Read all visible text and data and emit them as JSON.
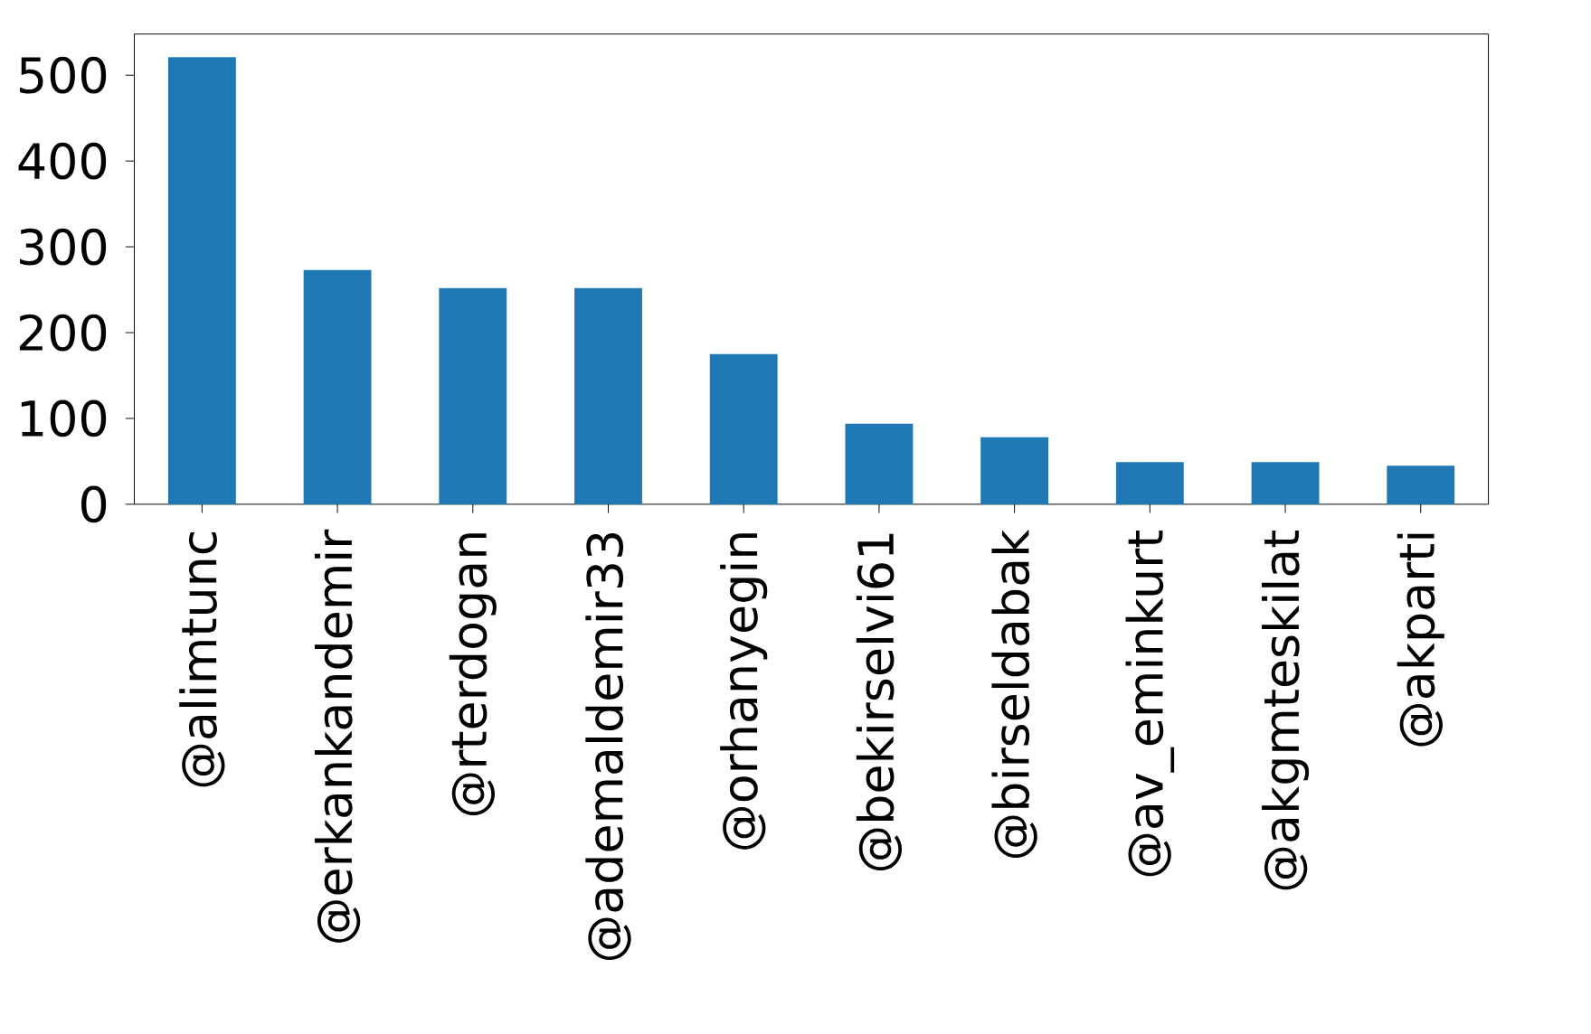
{
  "chart_data": {
    "type": "bar",
    "categories": [
      "@alimtunc",
      "@erkankandemir",
      "@rterdogan",
      "@ademaldemir33",
      "@orhanyegin",
      "@bekirselvi61",
      "@birseldabak",
      "@av_eminkurt",
      "@akgmteskilat",
      "@akparti"
    ],
    "values": [
      521,
      273,
      252,
      252,
      175,
      94,
      78,
      49,
      49,
      45
    ],
    "color": "#1f77b4",
    "ylim": [
      0,
      548
    ],
    "yticks": [
      0,
      100,
      200,
      300,
      400,
      500
    ]
  }
}
